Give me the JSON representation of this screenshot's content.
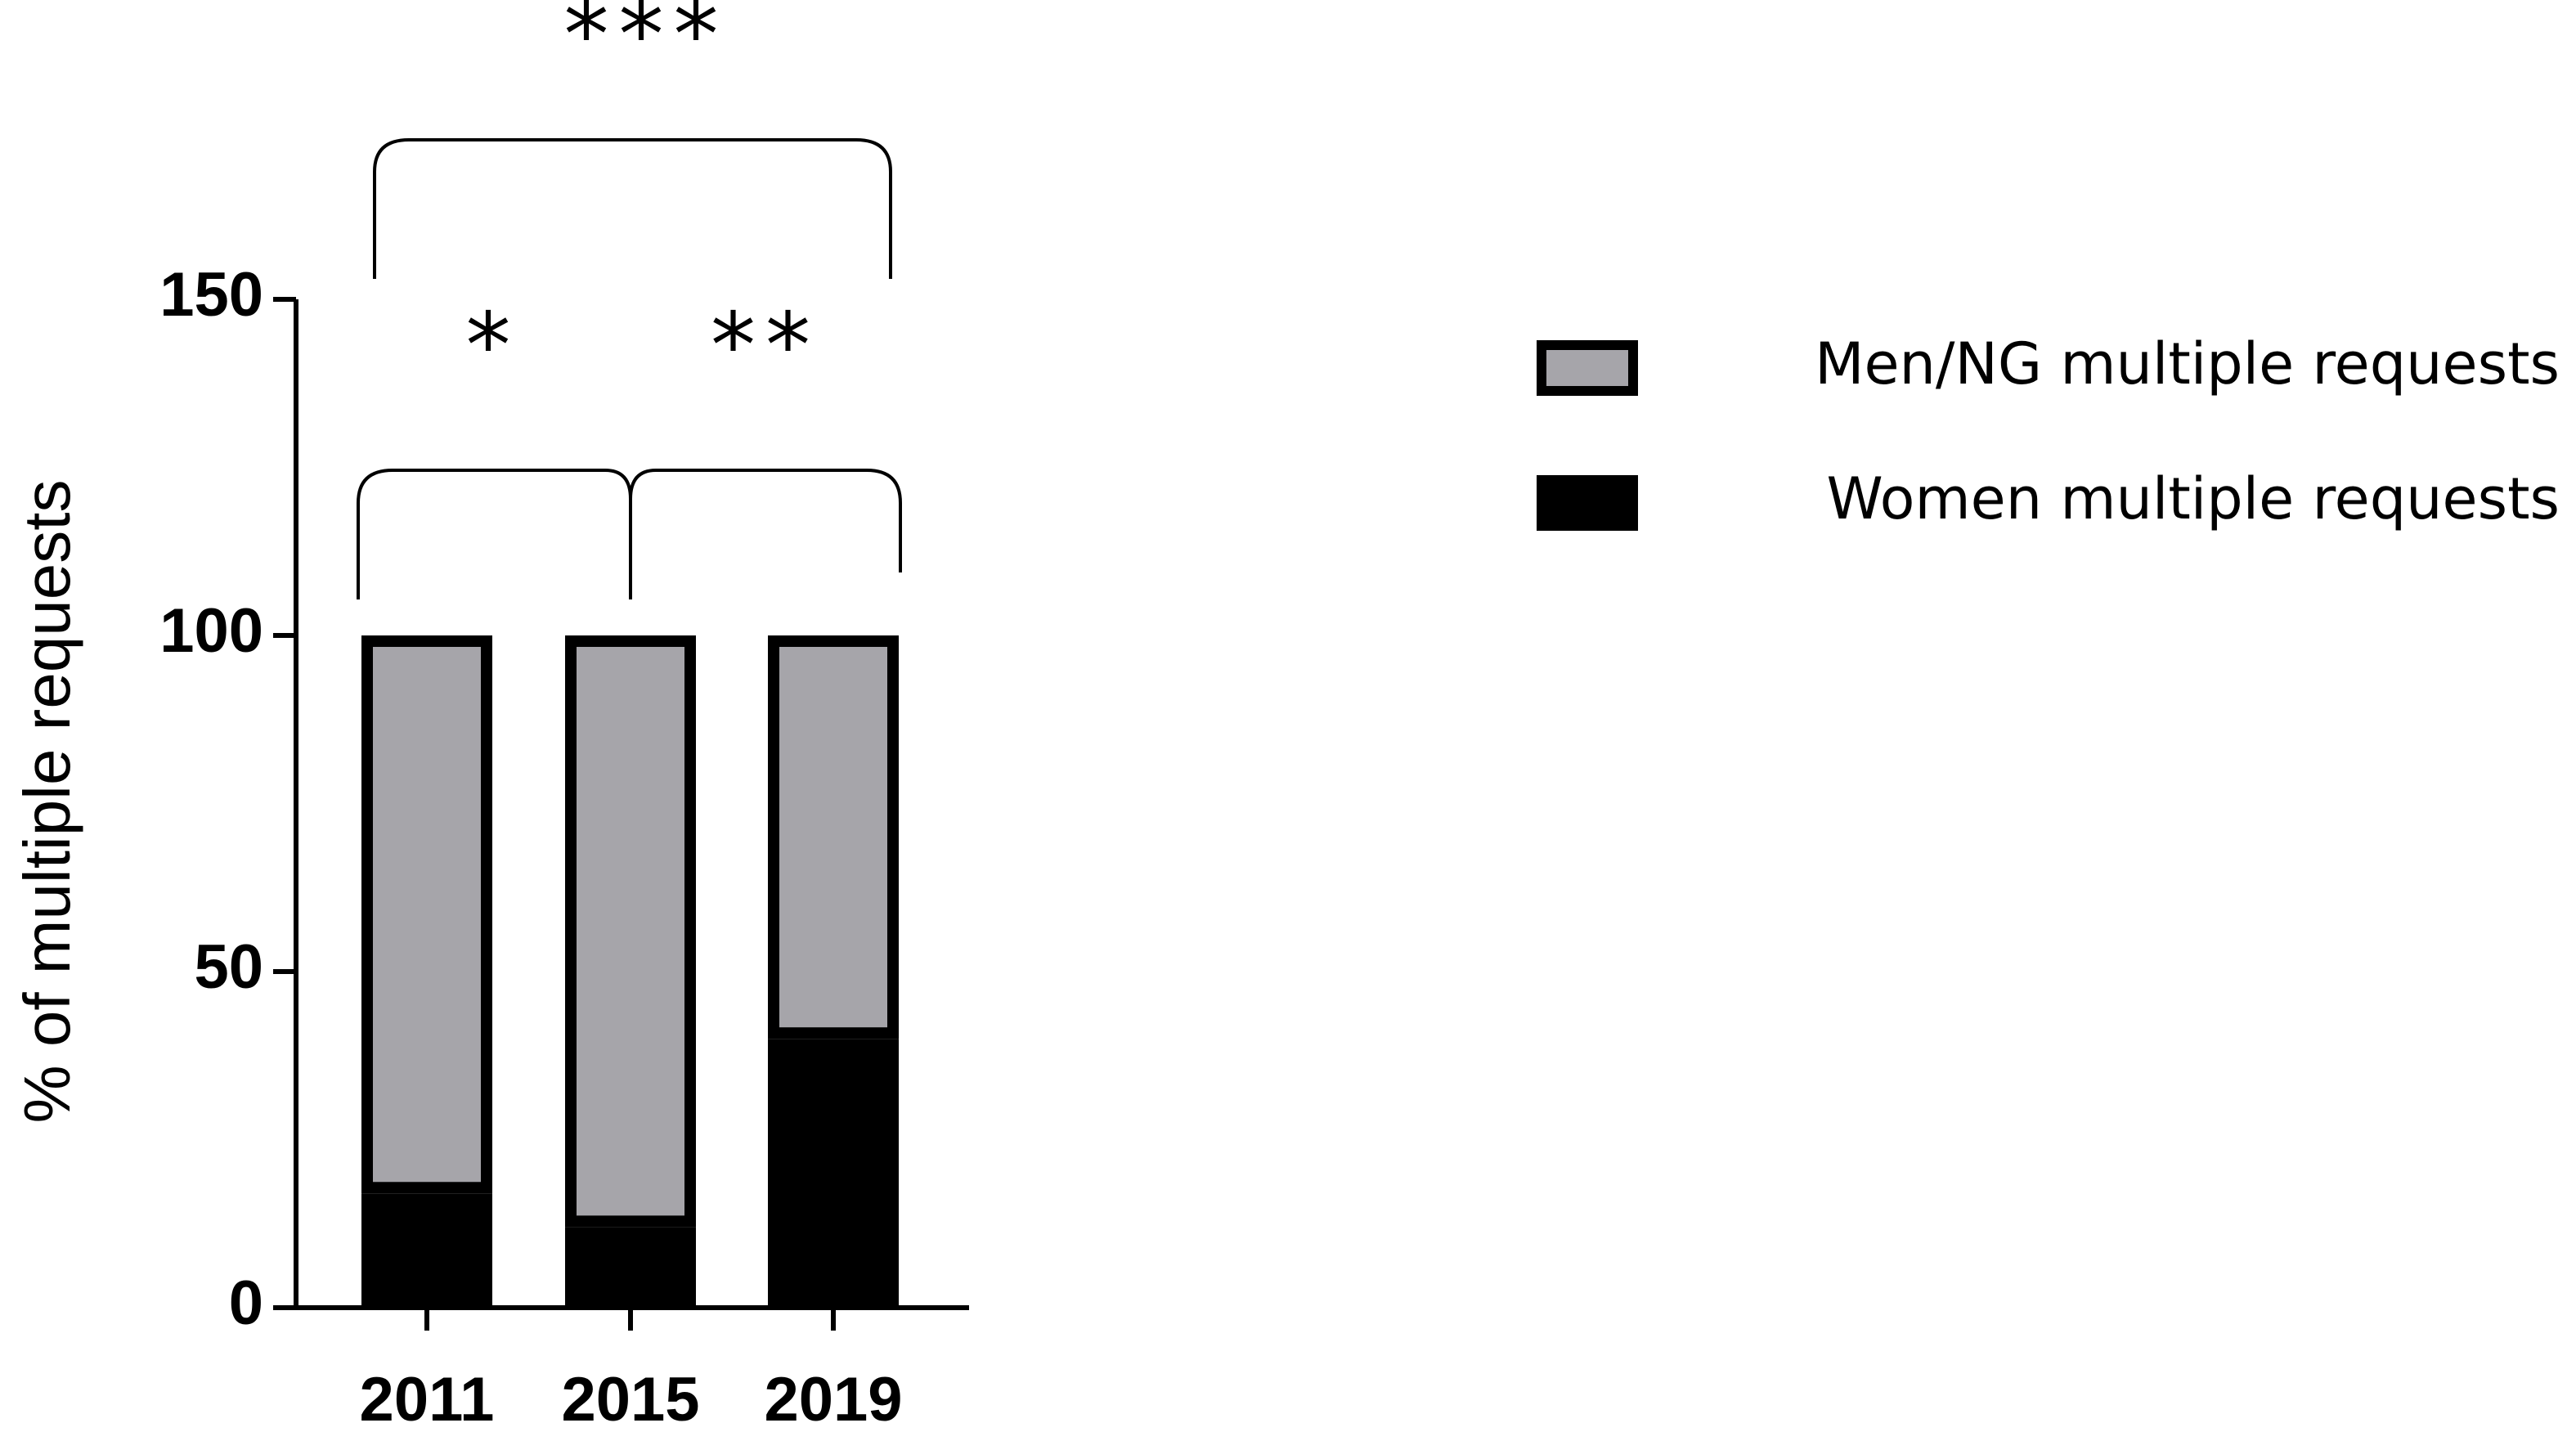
{
  "chart_data": {
    "type": "bar",
    "stacked": true,
    "y_label": "% of multiple requests",
    "categories": [
      "2011",
      "2015",
      "2019"
    ],
    "series": [
      {
        "name": "Women multiple requests",
        "color": "#000000",
        "values": [
          17,
          12,
          40
        ]
      },
      {
        "name": "Men/NG multiple requests",
        "color": "#a6a5aa",
        "values": [
          83,
          88,
          60
        ]
      }
    ],
    "ylim": [
      0,
      150
    ],
    "yticks": [
      0,
      50,
      100,
      150
    ],
    "annotations": [
      "***",
      "*",
      "**"
    ]
  }
}
